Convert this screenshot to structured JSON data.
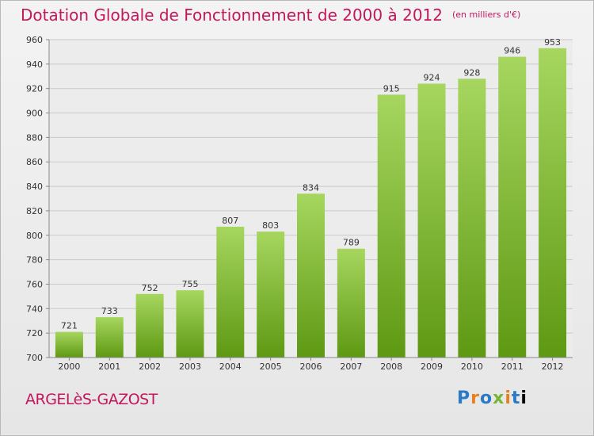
{
  "title": "Dotation Globale de Fonctionnement de 2000 à 2012",
  "unit": "(en milliers d'€)",
  "city": "ARGELèS-GAZOST",
  "logo": {
    "text": "Proxiti",
    "letters": [
      "P",
      "r",
      "o",
      "x",
      "i",
      "t",
      "i"
    ]
  },
  "colors": {
    "title": "#c2185b",
    "bar_top": "#9fd256",
    "bar_bottom": "#5f9a14"
  },
  "chart_data": {
    "type": "bar",
    "categories": [
      "2000",
      "2001",
      "2002",
      "2003",
      "2004",
      "2005",
      "2006",
      "2007",
      "2008",
      "2009",
      "2010",
      "2011",
      "2012"
    ],
    "values": [
      721,
      733,
      752,
      755,
      807,
      803,
      834,
      789,
      915,
      924,
      928,
      946,
      953
    ],
    "ylim": [
      700,
      960
    ],
    "yticks": [
      700,
      720,
      740,
      760,
      780,
      800,
      820,
      840,
      860,
      880,
      900,
      920,
      940,
      960
    ],
    "grid": true
  }
}
